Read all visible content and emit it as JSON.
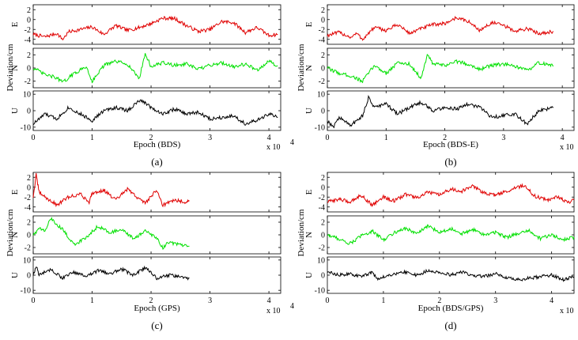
{
  "chart_data": [
    {
      "type": "line",
      "caption": "(a)",
      "xlabel": "Epoch (BDS)",
      "ylabel": "Deviation/cm",
      "x_multiplier": "x 10",
      "x_multiplier_exp": "4",
      "xlim": [
        0,
        4.2
      ],
      "xticks": [
        "0",
        "1",
        "2",
        "3",
        "4"
      ],
      "subplots": [
        {
          "label": "E",
          "color": "#e00000",
          "ylim": [
            -5,
            3
          ],
          "yticks": [
            "2",
            "0",
            "-2",
            "-4"
          ],
          "x": [
            0,
            0.2,
            0.4,
            0.5,
            0.6,
            0.8,
            1.0,
            1.2,
            1.4,
            1.6,
            1.8,
            2.0,
            2.2,
            2.4,
            2.6,
            2.8,
            3.0,
            3.2,
            3.4,
            3.6,
            3.8,
            4.0,
            4.15
          ],
          "y": [
            -3,
            -3.5,
            -2.8,
            -4,
            -2.5,
            -2,
            -1.5,
            -3,
            -1.2,
            -2.2,
            -1.6,
            -0.8,
            0.3,
            0.2,
            -1.2,
            -2.4,
            -2,
            -0.4,
            -0.6,
            -2.6,
            -1.6,
            -3.2,
            -3
          ]
        },
        {
          "label": "N",
          "color": "#00e000",
          "ylim": [
            -3,
            3
          ],
          "yticks": [
            "2",
            "0",
            "-2"
          ],
          "x": [
            0,
            0.2,
            0.4,
            0.5,
            0.7,
            0.9,
            1.0,
            1.2,
            1.4,
            1.6,
            1.8,
            1.9,
            2.0,
            2.2,
            2.4,
            2.6,
            2.8,
            3.0,
            3.2,
            3.4,
            3.6,
            3.8,
            4.0,
            4.15
          ],
          "y": [
            0,
            -1,
            -1.5,
            -2.2,
            -0.8,
            0.2,
            -2,
            0.4,
            1,
            0.6,
            -1.6,
            2.2,
            0.2,
            0.8,
            0.4,
            0.6,
            -0.2,
            0.4,
            0.8,
            0.2,
            0.6,
            -0.3,
            1,
            0.3
          ]
        },
        {
          "label": "U",
          "color": "#000000",
          "ylim": [
            -12,
            12
          ],
          "yticks": [
            "10",
            "0",
            "-10"
          ],
          "x": [
            0,
            0.2,
            0.4,
            0.6,
            0.8,
            1.0,
            1.2,
            1.4,
            1.6,
            1.8,
            1.9,
            2.0,
            2.2,
            2.4,
            2.6,
            2.8,
            3.0,
            3.2,
            3.4,
            3.6,
            3.8,
            4.0,
            4.15
          ],
          "y": [
            -8,
            -2,
            -5,
            2,
            -2,
            -6,
            0,
            2,
            0,
            6,
            5,
            2,
            -2,
            1,
            -2,
            -1,
            -5,
            -4,
            -3,
            -8,
            -6,
            -2,
            -4
          ]
        }
      ]
    },
    {
      "type": "line",
      "caption": "(b)",
      "xlabel": "Epoch (BDS-E)",
      "ylabel": "Deviation/cm",
      "x_multiplier": "x 10",
      "x_multiplier_exp": "4",
      "xlim": [
        0,
        4.2
      ],
      "xticks": [
        "0",
        "1",
        "2",
        "3",
        "4"
      ],
      "subplots": [
        {
          "label": "E",
          "color": "#e00000",
          "ylim": [
            -5,
            3
          ],
          "yticks": [
            "2",
            "0",
            "-2",
            "-4"
          ],
          "x": [
            0,
            0.2,
            0.4,
            0.5,
            0.6,
            0.8,
            1.0,
            1.2,
            1.4,
            1.6,
            1.8,
            2.0,
            2.2,
            2.4,
            2.6,
            2.8,
            3.0,
            3.2,
            3.4,
            3.6,
            3.85
          ],
          "y": [
            -3.2,
            -2.6,
            -3.6,
            -2.8,
            -4,
            -1.6,
            -2.2,
            -1,
            -2.8,
            -1.8,
            -1,
            -0.8,
            0.4,
            -0.4,
            -2.2,
            -0.6,
            -1.2,
            -2.4,
            -1.8,
            -2.8,
            -2.4
          ]
        },
        {
          "label": "N",
          "color": "#00e000",
          "ylim": [
            -3,
            3
          ],
          "yticks": [
            "2",
            "0",
            "-2"
          ],
          "x": [
            0,
            0.2,
            0.4,
            0.6,
            0.8,
            1.0,
            1.2,
            1.4,
            1.6,
            1.7,
            1.8,
            2.0,
            2.2,
            2.4,
            2.6,
            2.8,
            3.0,
            3.2,
            3.4,
            3.6,
            3.85
          ],
          "y": [
            0,
            -0.8,
            -1.2,
            -2,
            0.4,
            -0.8,
            0.8,
            0.6,
            -1.6,
            2,
            0.6,
            0.4,
            1,
            0.6,
            -0.2,
            0.4,
            0.6,
            0.2,
            -0.4,
            0.8,
            0.3
          ]
        },
        {
          "label": "U",
          "color": "#000000",
          "ylim": [
            -12,
            12
          ],
          "yticks": [
            "10",
            "0",
            "-10"
          ],
          "x": [
            0,
            0.1,
            0.2,
            0.4,
            0.6,
            0.7,
            0.8,
            1.0,
            1.2,
            1.4,
            1.6,
            1.8,
            2.0,
            2.2,
            2.4,
            2.6,
            2.8,
            3.0,
            3.2,
            3.4,
            3.6,
            3.85
          ],
          "y": [
            -6,
            -10,
            -4,
            -9,
            -3,
            8,
            2,
            4,
            -2,
            2,
            5,
            0,
            2,
            1,
            4,
            2,
            -4,
            -3,
            -2,
            -8,
            0,
            2
          ]
        }
      ]
    },
    {
      "type": "line",
      "caption": "(c)",
      "xlabel": "Epoch (GPS)",
      "ylabel": "Deviation/cm",
      "x_multiplier": "x 10",
      "x_multiplier_exp": "4",
      "xlim": [
        0,
        4.2
      ],
      "xticks": [
        "0",
        "1",
        "2",
        "3",
        "4"
      ],
      "subplots": [
        {
          "label": "E",
          "color": "#e00000",
          "ylim": [
            -5,
            3
          ],
          "yticks": [
            "2",
            "0",
            "-2",
            "-4"
          ],
          "x": [
            0,
            0.05,
            0.1,
            0.2,
            0.4,
            0.6,
            0.8,
            0.95,
            1.0,
            1.2,
            1.4,
            1.6,
            1.8,
            1.9,
            2.0,
            2.1,
            2.2,
            2.4,
            2.6,
            2.65
          ],
          "y": [
            -2,
            2.5,
            -1,
            -2,
            -3.6,
            -2,
            -1.4,
            -3,
            -1.2,
            -0.6,
            -2.6,
            -0.4,
            -2.4,
            -3.2,
            -1.8,
            -0.6,
            -3.6,
            -2.6,
            -3,
            -2.8
          ]
        },
        {
          "label": "N",
          "color": "#00e000",
          "ylim": [
            -3,
            3
          ],
          "yticks": [
            "2",
            "0",
            "-2"
          ],
          "x": [
            0,
            0.1,
            0.2,
            0.3,
            0.5,
            0.7,
            0.9,
            1.1,
            1.3,
            1.5,
            1.7,
            1.9,
            2.1,
            2.2,
            2.3,
            2.5,
            2.65
          ],
          "y": [
            0,
            1,
            0.6,
            2.6,
            0.8,
            -1.6,
            -0.4,
            1.4,
            0.4,
            0.8,
            -0.6,
            0.6,
            -0.6,
            -2,
            -1.2,
            -1.6,
            -1.8
          ]
        },
        {
          "label": "U",
          "color": "#000000",
          "ylim": [
            -12,
            12
          ],
          "yticks": [
            "10",
            "0",
            "-10"
          ],
          "x": [
            0,
            0.05,
            0.1,
            0.3,
            0.5,
            0.7,
            0.9,
            1.1,
            1.3,
            1.5,
            1.7,
            1.9,
            2.1,
            2.3,
            2.5,
            2.65
          ],
          "y": [
            0,
            6,
            0,
            4,
            -2,
            2,
            -1,
            3,
            1,
            4,
            0,
            5,
            -2,
            0,
            -1,
            -2
          ]
        }
      ]
    },
    {
      "type": "line",
      "caption": "(d)",
      "xlabel": "Epoch (BDS/GPS)",
      "ylabel": "Deviation/cm",
      "x_multiplier": "x 10",
      "x_multiplier_exp": "4",
      "xlim": [
        0,
        4.4
      ],
      "xticks": [
        "0",
        "1",
        "2",
        "3",
        "4"
      ],
      "subplots": [
        {
          "label": "E",
          "color": "#e00000",
          "ylim": [
            -5,
            3
          ],
          "yticks": [
            "2",
            "0",
            "-2",
            "-4"
          ],
          "x": [
            0,
            0.2,
            0.4,
            0.6,
            0.8,
            1.0,
            1.2,
            1.4,
            1.6,
            1.8,
            2.0,
            2.2,
            2.4,
            2.6,
            2.8,
            3.0,
            3.2,
            3.4,
            3.5,
            3.7,
            3.9,
            4.1,
            4.3,
            4.4
          ],
          "y": [
            -3,
            -2.4,
            -3,
            -1.6,
            -3.6,
            -2,
            -2.8,
            -1.4,
            -2.2,
            -1,
            -1.6,
            -0.4,
            -0.8,
            0.2,
            -1.2,
            -1.6,
            -0.8,
            0,
            0.4,
            -1.8,
            -2.6,
            -2,
            -3,
            -2.6
          ]
        },
        {
          "label": "N",
          "color": "#00e000",
          "ylim": [
            -3,
            3
          ],
          "yticks": [
            "2",
            "0",
            "-2"
          ],
          "x": [
            0,
            0.2,
            0.4,
            0.6,
            0.8,
            1.0,
            1.2,
            1.4,
            1.6,
            1.8,
            2.0,
            2.2,
            2.4,
            2.6,
            2.8,
            3.0,
            3.2,
            3.4,
            3.6,
            3.8,
            4.0,
            4.2,
            4.4
          ],
          "y": [
            0,
            -0.6,
            -1.4,
            -0.2,
            0.6,
            -0.8,
            0.4,
            1,
            0.2,
            1.4,
            0.4,
            1,
            0.2,
            0.8,
            0,
            0.4,
            -0.4,
            0.2,
            0.6,
            -0.6,
            0,
            -0.8,
            -0.4
          ]
        },
        {
          "label": "U",
          "color": "#000000",
          "ylim": [
            -12,
            12
          ],
          "yticks": [
            "10",
            "0",
            "-10"
          ],
          "x": [
            0,
            0.2,
            0.4,
            0.6,
            0.8,
            0.9,
            1.0,
            1.2,
            1.4,
            1.6,
            1.8,
            2.0,
            2.2,
            2.4,
            2.6,
            2.8,
            3.0,
            3.2,
            3.4,
            3.6,
            3.8,
            4.0,
            4.2,
            4.4
          ],
          "y": [
            2,
            0,
            1,
            -1,
            2,
            -3,
            -1,
            1,
            2,
            0,
            3,
            2,
            0,
            2,
            0,
            -1,
            1,
            -2,
            -3,
            -2,
            -1,
            0,
            -3,
            -1
          ]
        }
      ]
    }
  ],
  "colors": {
    "axis": "#000000",
    "frame": "#000000"
  }
}
